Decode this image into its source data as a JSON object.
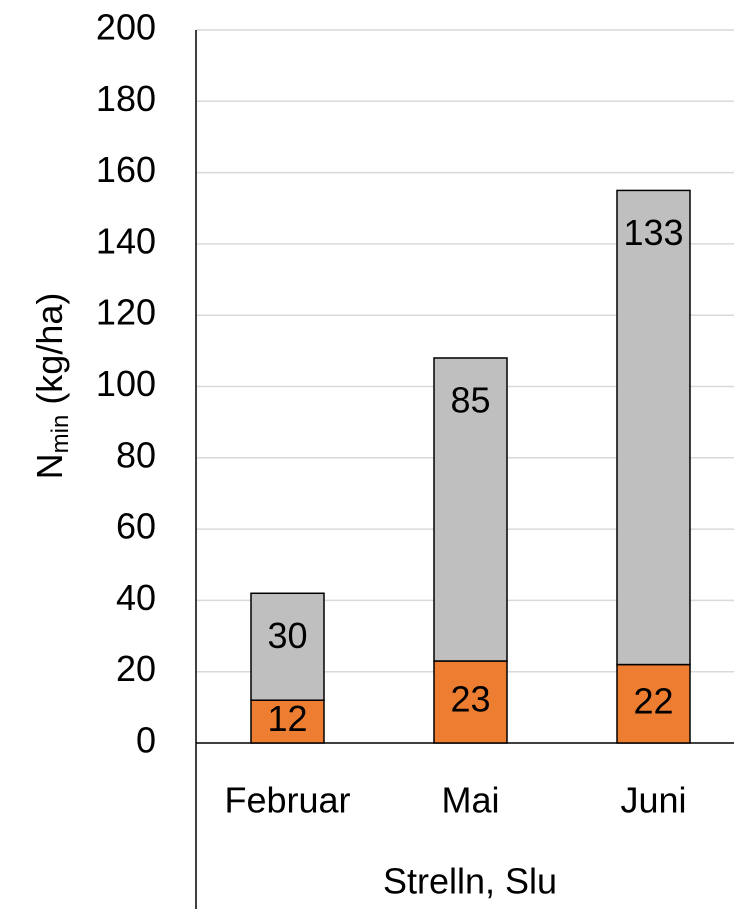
{
  "chart_data": {
    "type": "stacked_bar",
    "categories": [
      "Februar",
      "Mai",
      "Juni"
    ],
    "group_label": "Strelln, Slu",
    "ylabel": {
      "main": "N",
      "sub": "min",
      "unit": " (kg/ha)"
    },
    "series": [
      {
        "color": "#ed7d31",
        "values": [
          12,
          23,
          22
        ]
      },
      {
        "color": "#bfbfbf",
        "values": [
          30,
          85,
          133
        ]
      }
    ],
    "ylim": [
      0,
      200
    ],
    "yticks": [
      0,
      20,
      40,
      60,
      80,
      100,
      120,
      140,
      160,
      180,
      200
    ],
    "grid": true
  }
}
